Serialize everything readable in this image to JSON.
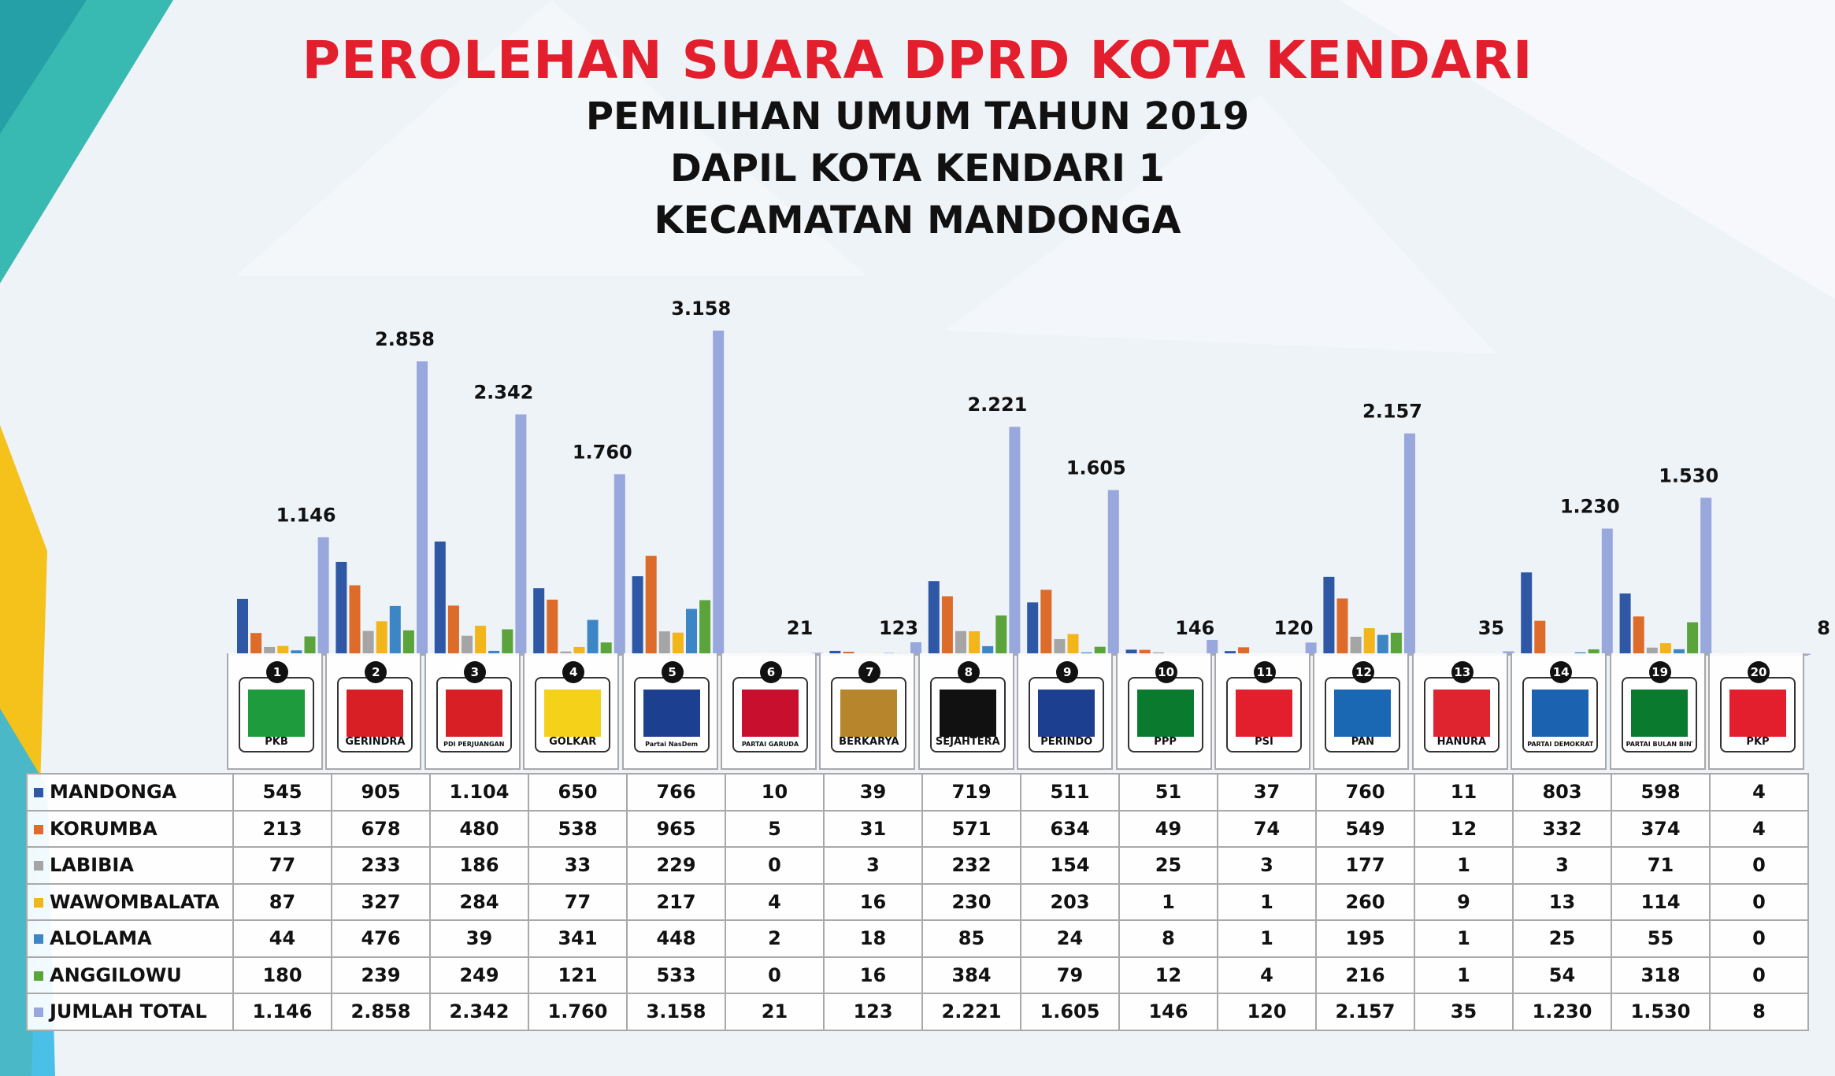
{
  "title": "PEROLEHAN SUARA DPRD KOTA KENDARI",
  "subtitle_1": "PEMILIHAN UMUM TAHUN 2019",
  "subtitle_2": "DAPIL KOTA KENDARI 1",
  "subtitle_3": "KECAMATAN MANDONGA",
  "colors": {
    "title_red": "#e31e2d",
    "series": [
      "#2e58a6",
      "#dd6b2a",
      "#a5a5a5",
      "#f2b51a",
      "#3d86c6",
      "#5aa43b",
      "#98a8dd"
    ]
  },
  "parties": [
    {
      "number": "1",
      "abbr": "PKB",
      "color": "#1e9b3c"
    },
    {
      "number": "2",
      "abbr": "GERINDRA",
      "color": "#d81f26"
    },
    {
      "number": "3",
      "abbr": "PDI PERJUANGAN",
      "color": "#d81f26"
    },
    {
      "number": "4",
      "abbr": "GOLKAR",
      "color": "#f6d11a"
    },
    {
      "number": "5",
      "abbr": "Partai NasDem",
      "color": "#1d3f8f"
    },
    {
      "number": "6",
      "abbr": "PARTAI GARUDA",
      "color": "#c8102e"
    },
    {
      "number": "7",
      "abbr": "BERKARYA",
      "color": "#b7852b"
    },
    {
      "number": "8",
      "abbr": "SEJAHTERA",
      "color": "#111111"
    },
    {
      "number": "9",
      "abbr": "PERINDO",
      "color": "#1d3f8f"
    },
    {
      "number": "10",
      "abbr": "PPP",
      "color": "#0a7a2e"
    },
    {
      "number": "11",
      "abbr": "PSI",
      "color": "#e31e2d"
    },
    {
      "number": "12",
      "abbr": "PAN",
      "color": "#1a67b3"
    },
    {
      "number": "13",
      "abbr": "HANURA",
      "color": "#e0242f"
    },
    {
      "number": "14",
      "abbr": "PARTAI DEMOKRAT",
      "color": "#1b62b0"
    },
    {
      "number": "19",
      "abbr": "PARTAI BULAN BINTANG",
      "color": "#0a7a2e"
    },
    {
      "number": "20",
      "abbr": "PKP",
      "color": "#e31e2d"
    }
  ],
  "chart_data": {
    "type": "bar",
    "categories": [
      "1",
      "2",
      "3",
      "4",
      "5",
      "6",
      "7",
      "8",
      "9",
      "10",
      "11",
      "12",
      "13",
      "14",
      "19",
      "20"
    ],
    "series": [
      {
        "name": "MANDONGA",
        "values": [
          545,
          905,
          1104,
          650,
          766,
          10,
          39,
          719,
          511,
          51,
          37,
          760,
          11,
          803,
          598,
          4
        ],
        "labels": [
          "545",
          "905",
          "1.104",
          "650",
          "766",
          "10",
          "39",
          "719",
          "511",
          "51",
          "37",
          "760",
          "11",
          "803",
          "598",
          "4"
        ]
      },
      {
        "name": "KORUMBA",
        "values": [
          213,
          678,
          480,
          538,
          965,
          5,
          31,
          571,
          634,
          49,
          74,
          549,
          12,
          332,
          374,
          4
        ],
        "labels": [
          "213",
          "678",
          "480",
          "538",
          "965",
          "5",
          "31",
          "571",
          "634",
          "49",
          "74",
          "549",
          "12",
          "332",
          "374",
          "4"
        ]
      },
      {
        "name": "LABIBIA",
        "values": [
          77,
          233,
          186,
          33,
          229,
          0,
          3,
          232,
          154,
          25,
          3,
          177,
          1,
          3,
          71,
          0
        ],
        "labels": [
          "77",
          "233",
          "186",
          "33",
          "229",
          "0",
          "3",
          "232",
          "154",
          "25",
          "3",
          "177",
          "1",
          "3",
          "71",
          "0"
        ]
      },
      {
        "name": "WAWOMBALATA",
        "values": [
          87,
          327,
          284,
          77,
          217,
          4,
          16,
          230,
          203,
          1,
          1,
          260,
          9,
          13,
          114,
          0
        ],
        "labels": [
          "87",
          "327",
          "284",
          "77",
          "217",
          "4",
          "16",
          "230",
          "203",
          "1",
          "1",
          "260",
          "9",
          "13",
          "114",
          "0"
        ]
      },
      {
        "name": "ALOLAMA",
        "values": [
          44,
          476,
          39,
          341,
          448,
          2,
          18,
          85,
          24,
          8,
          1,
          195,
          1,
          25,
          55,
          0
        ],
        "labels": [
          "44",
          "476",
          "39",
          "341",
          "448",
          "2",
          "18",
          "85",
          "24",
          "8",
          "1",
          "195",
          "1",
          "25",
          "55",
          "0"
        ]
      },
      {
        "name": "ANGGILOWU",
        "values": [
          180,
          239,
          249,
          121,
          533,
          0,
          16,
          384,
          79,
          12,
          4,
          216,
          1,
          54,
          318,
          0
        ],
        "labels": [
          "180",
          "239",
          "249",
          "121",
          "533",
          "0",
          "16",
          "384",
          "79",
          "12",
          "4",
          "216",
          "1",
          "54",
          "318",
          "0"
        ]
      },
      {
        "name": "JUMLAH TOTAL",
        "values": [
          1146,
          2858,
          2342,
          1760,
          3158,
          21,
          123,
          2221,
          1605,
          146,
          120,
          2157,
          35,
          1230,
          1530,
          8
        ],
        "labels": [
          "1.146",
          "2.858",
          "2.342",
          "1.760",
          "3.158",
          "21",
          "123",
          "2.221",
          "1.605",
          "146",
          "120",
          "2.157",
          "35",
          "1.230",
          "1.530",
          "8"
        ]
      }
    ],
    "total_labels": [
      "1.146",
      "2.858",
      "2.342",
      "1.760",
      "3.158",
      "21",
      "123",
      "2.221",
      "1.605",
      "146",
      "120",
      "2.157",
      "35",
      "1.230",
      "1.530",
      "8"
    ],
    "ylim": [
      0,
      3158
    ],
    "grid": false,
    "legend_placement": "left table"
  }
}
